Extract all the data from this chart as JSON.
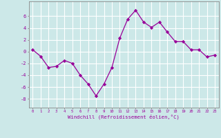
{
  "x": [
    0,
    1,
    2,
    3,
    4,
    5,
    6,
    7,
    8,
    9,
    10,
    11,
    12,
    13,
    14,
    15,
    16,
    17,
    18,
    19,
    20,
    21,
    22,
    23
  ],
  "y": [
    0.3,
    -0.8,
    -2.7,
    -2.5,
    -1.5,
    -2.0,
    -4.0,
    -5.5,
    -7.5,
    -5.5,
    -2.7,
    2.3,
    5.5,
    7.0,
    5.0,
    4.1,
    5.0,
    3.3,
    1.7,
    1.7,
    0.3,
    0.3,
    -0.9,
    -0.6
  ],
  "line_color": "#990099",
  "marker": "D",
  "marker_size": 2.2,
  "bg_color": "#cce8e8",
  "grid_color": "#ffffff",
  "tick_label_color": "#990099",
  "xlabel": "Windchill (Refroidissement éolien,°C)",
  "xlabel_color": "#990099",
  "ylim": [
    -9.5,
    8.5
  ],
  "yticks": [
    -8,
    -6,
    -4,
    -2,
    0,
    2,
    4,
    6
  ],
  "xlim": [
    -0.5,
    23.5
  ],
  "spine_color": "#888888"
}
